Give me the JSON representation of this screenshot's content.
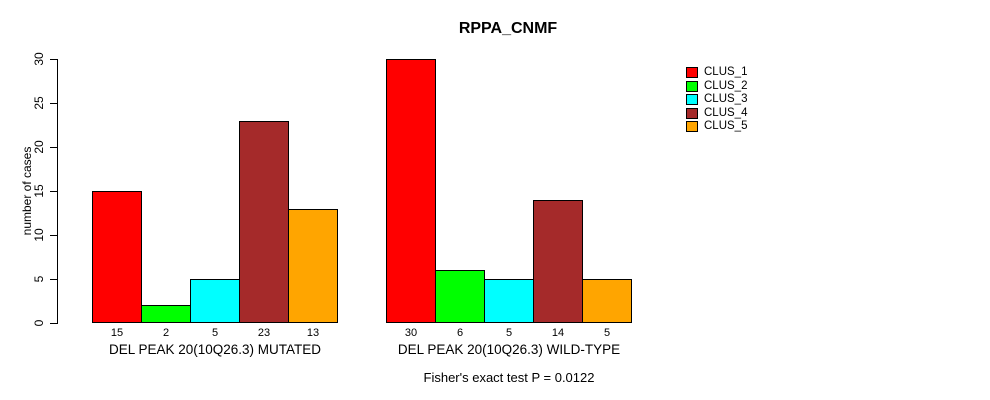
{
  "chart_data": {
    "type": "bar",
    "title": "RPPA_CNMF",
    "ylabel": "number of cases",
    "xlabel": "",
    "ylim": [
      0,
      30
    ],
    "yticks": [
      0,
      5,
      10,
      15,
      20,
      25,
      30
    ],
    "grid": false,
    "legend_position": "right",
    "clusters": [
      {
        "label": "CLUS_1",
        "color": "#FF0000"
      },
      {
        "label": "CLUS_2",
        "color": "#00FF00"
      },
      {
        "label": "CLUS_3",
        "color": "#00FFFF"
      },
      {
        "label": "CLUS_4",
        "color": "#A52A2A"
      },
      {
        "label": "CLUS_5",
        "color": "#FFA500"
      }
    ],
    "categories": [
      "DEL PEAK 20(10Q26.3) MUTATED",
      "DEL PEAK 20(10Q26.3) WILD-TYPE"
    ],
    "groups": [
      {
        "label": "DEL PEAK 20(10Q26.3) MUTATED",
        "values": [
          15,
          2,
          5,
          23,
          13
        ]
      },
      {
        "label": "DEL PEAK 20(10Q26.3) WILD-TYPE",
        "values": [
          30,
          6,
          5,
          14,
          5
        ]
      }
    ],
    "annotation": "Fisher's exact test P = 0.0122"
  }
}
